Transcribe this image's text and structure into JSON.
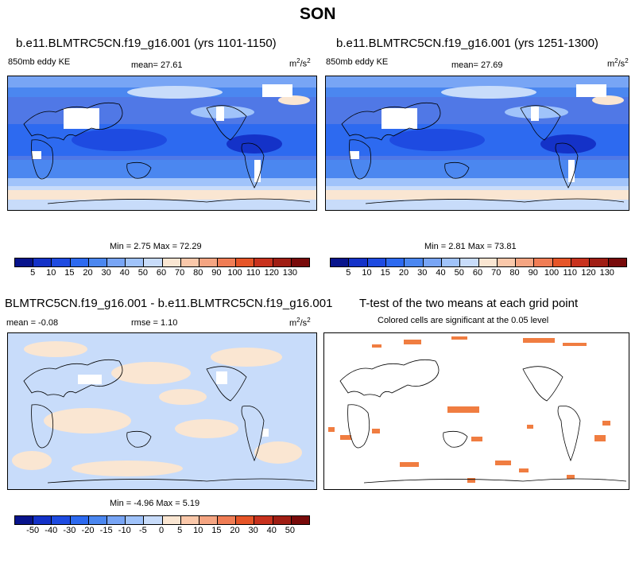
{
  "title": "SON",
  "panels": {
    "p1": {
      "title": "b.e11.BLMTRC5CN.f19_g16.001 (yrs 1101-1150)",
      "variable": "850mb eddy KE",
      "mean": "mean=  27.61",
      "units_base": "m",
      "units_sup1": "2",
      "units_mid": "/s",
      "units_sup2": "2",
      "minmax": "Min =   2.75 Max =  72.29"
    },
    "p2": {
      "title": "b.e11.BLMTRC5CN.f19_g16.001 (yrs 1251-1300)",
      "variable": "850mb eddy KE",
      "mean": "mean=  27.69",
      "units_base": "m",
      "units_sup1": "2",
      "units_mid": "/s",
      "units_sup2": "2",
      "minmax": "Min =   2.81 Max =  73.81"
    },
    "p3": {
      "title": "BLMTRC5CN.f19_g16.001 - b.e11.BLMTRC5CN.f19_g16.001",
      "mean": "mean =  -0.08",
      "rmse": "rmse =   1.10",
      "units_base": "m",
      "units_sup1": "2",
      "units_mid": "/s",
      "units_sup2": "2",
      "minmax": "Min =  -4.96 Max =   5.19"
    },
    "p4": {
      "title": "T-test of the two means at each grid point",
      "subtitle": "Colored cells are significant at the 0.05 level"
    }
  },
  "colorbar_top": {
    "labels": [
      "5",
      "10",
      "15",
      "20",
      "30",
      "40",
      "50",
      "60",
      "70",
      "80",
      "90",
      "100",
      "110",
      "120",
      "130"
    ],
    "colors": [
      "#08148c",
      "#1432c8",
      "#1e4be1",
      "#2d6af0",
      "#4b87f0",
      "#78a5f5",
      "#a0c3fa",
      "#c8dcfa",
      "#fae6d2",
      "#fac8aa",
      "#f5a582",
      "#f07d55",
      "#e65528",
      "#c8321e",
      "#a01e14",
      "#780a0a"
    ]
  },
  "colorbar_diff": {
    "labels": [
      "-50",
      "-40",
      "-30",
      "-20",
      "-15",
      "-10",
      "-5",
      "0",
      "5",
      "10",
      "15",
      "20",
      "30",
      "40",
      "50"
    ],
    "colors": [
      "#08148c",
      "#1432c8",
      "#1e4be1",
      "#2d6af0",
      "#4b87f0",
      "#78a5f5",
      "#a0c3fa",
      "#c8dcfa",
      "#fae6d2",
      "#fac8aa",
      "#f5a582",
      "#f07d55",
      "#e65528",
      "#c8321e",
      "#a01e14",
      "#780a0a"
    ]
  },
  "colors": {
    "land_fill_missing": "#ffffff",
    "sig_cell": "#f07d41"
  }
}
